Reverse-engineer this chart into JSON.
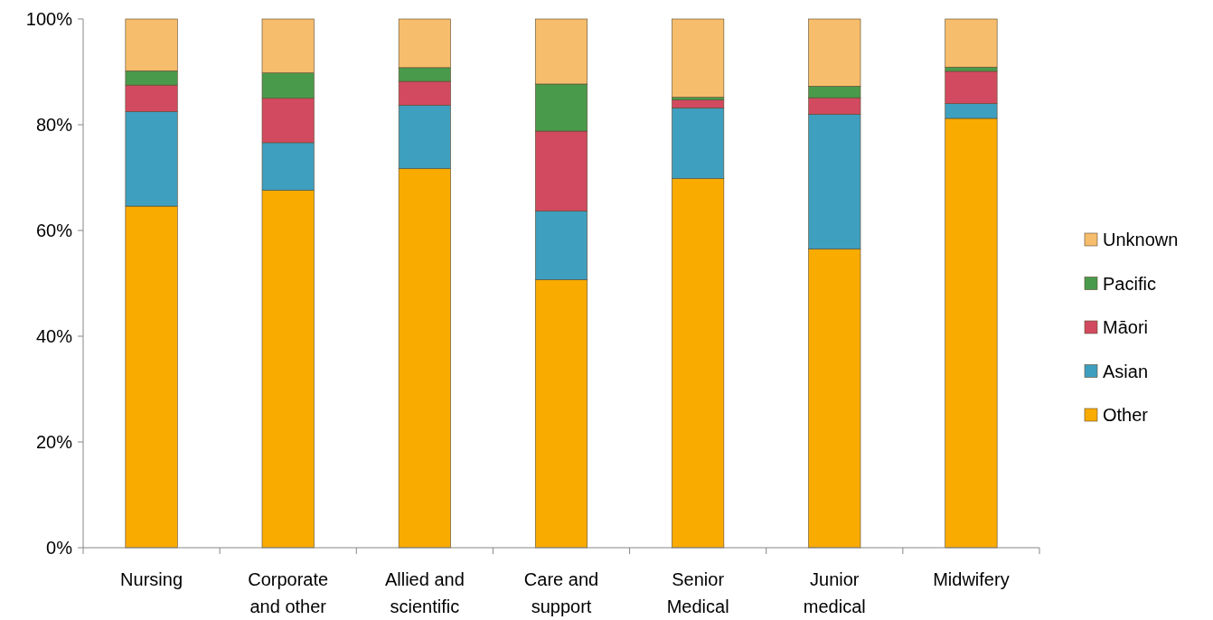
{
  "chart_data": {
    "type": "bar",
    "stacked": true,
    "categories": [
      "Nursing",
      "Corporate and other",
      "Allied and scientific",
      "Care and support",
      "Senior Medical",
      "Junior medical",
      "Midwifery"
    ],
    "series": [
      {
        "name": "Other",
        "color": "#f9ab00",
        "values": [
          64.6,
          67.6,
          71.7,
          50.7,
          69.8,
          56.5,
          81.2
        ]
      },
      {
        "name": "Asian",
        "color": "#3f9fbf",
        "values": [
          17.9,
          9.0,
          12.0,
          13.0,
          13.4,
          25.5,
          2.8
        ]
      },
      {
        "name": "Māori",
        "color": "#d24a60",
        "values": [
          5.0,
          8.4,
          4.5,
          15.1,
          1.5,
          3.1,
          6.1
        ]
      },
      {
        "name": "Pacific",
        "color": "#4a9a4c",
        "values": [
          2.7,
          4.8,
          2.6,
          8.9,
          0.5,
          2.2,
          0.8
        ]
      },
      {
        "name": "Unknown",
        "color": "#f6bd6c",
        "values": [
          9.8,
          10.2,
          9.2,
          12.3,
          14.8,
          12.7,
          9.1
        ]
      }
    ],
    "ylim": [
      0,
      100
    ],
    "yticks": [
      {
        "value": 0,
        "label": "0%"
      },
      {
        "value": 20,
        "label": "20%"
      },
      {
        "value": 40,
        "label": "40%"
      },
      {
        "value": 60,
        "label": "60%"
      },
      {
        "value": 80,
        "label": "80%"
      },
      {
        "value": 100,
        "label": "100%"
      }
    ],
    "legend": "right"
  }
}
